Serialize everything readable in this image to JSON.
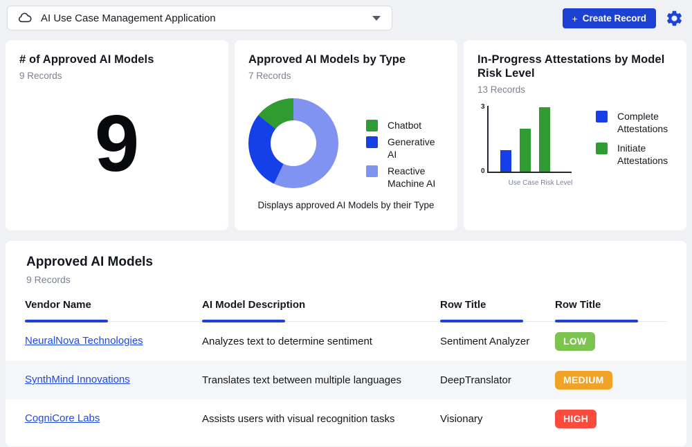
{
  "app": {
    "name": "AI Use Case Management Application",
    "create_plus": "+",
    "create_label": "Create Record"
  },
  "colors": {
    "accent_blue": "#1C41D4",
    "link_blue": "#1E4AE4",
    "header_underline_blue": "#1C43D8",
    "chart_blue": "#1540E8",
    "chart_green": "#2F9B30",
    "chart_periwinkle": "#8093F0",
    "badge_low_green": "#7CC44F",
    "badge_medium_orange": "#F0A328",
    "badge_high_red": "#FA4B3C"
  },
  "cards": [
    {
      "title": "# of Approved AI Models",
      "records": "9 Records",
      "value": "9"
    },
    {
      "title": "Approved AI Models by Type",
      "records": "7 Records",
      "caption": "Displays approved AI Models by their Type"
    },
    {
      "title": "In-Progress Attestations by Model Risk Level",
      "records": "13 Records"
    }
  ],
  "chart_data": [
    {
      "type": "pie",
      "donut": true,
      "title": "Approved AI Models by Type",
      "records_label": "7 Records",
      "slices": [
        {
          "label": "Chatbot",
          "value": 1,
          "color": "#2F9B30"
        },
        {
          "label": "Generative AI",
          "value": 2,
          "color": "#1540E8"
        },
        {
          "label": "Reactive Machine AI",
          "value": 4,
          "color": "#8093F0"
        }
      ],
      "legend_position": "right",
      "draw_order": "largest-first-clockwise-from-top"
    },
    {
      "type": "bar",
      "title": "In-Progress Attestations by Model Risk Level",
      "records_label": "13 Records",
      "xlabel": "Use Case Risk Level",
      "ylim": [
        0,
        3
      ],
      "yticks": [
        0,
        3
      ],
      "grid": false,
      "bars": [
        {
          "series": "Complete Attestations",
          "value": 1,
          "color": "#1540E8"
        },
        {
          "series": "Initiate Attestations",
          "value": 2,
          "color": "#2F9B30"
        },
        {
          "series": "Initiate Attestations",
          "value": 3,
          "color": "#2F9B30"
        }
      ],
      "legend": [
        {
          "label": "Complete Attestations",
          "color": "#1540E8"
        },
        {
          "label": "Initiate Attestations",
          "color": "#2F9B30"
        }
      ],
      "legend_position": "right"
    }
  ],
  "table": {
    "title": "Approved AI Models",
    "records": "9 Records",
    "columns": [
      "Vendor Name",
      "AI Model Description",
      "Row Title",
      "Row Title"
    ],
    "rows": [
      {
        "vendor": "NeuralNova Technologies",
        "description": "Analyzes text to determine sentiment",
        "model": "Sentiment Analyzer",
        "risk": "LOW",
        "risk_color": "#7CC44F"
      },
      {
        "vendor": "SynthMind Innovations",
        "description": "Translates text between multiple languages",
        "model": "DeepTranslator",
        "risk": "MEDIUM",
        "risk_color": "#F0A328"
      },
      {
        "vendor": "CogniCore Labs",
        "description": "Assists users with visual recognition tasks",
        "model": "Visionary",
        "risk": "HIGH",
        "risk_color": "#FA4B3C"
      }
    ]
  }
}
